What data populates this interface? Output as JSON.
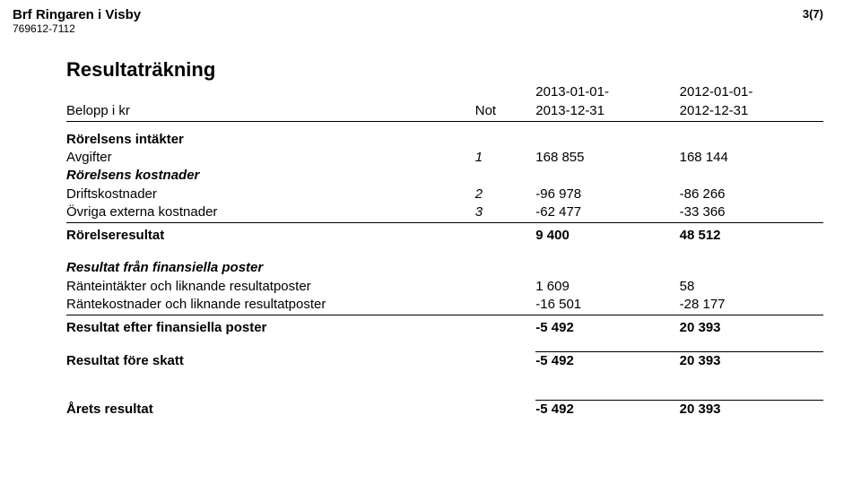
{
  "header": {
    "company": "Brf Ringaren i Visby",
    "org_no": "769612-7112",
    "page_no": "3(7)"
  },
  "report": {
    "title": "Resultaträkning",
    "columns": {
      "label": "Belopp i kr",
      "note": "Not",
      "cy_line1": "2013-01-01-",
      "cy_line2": "2013-12-31",
      "py_line1": "2012-01-01-",
      "py_line2": "2012-12-31"
    },
    "sections": {
      "income": {
        "heading": "Rörelsens intäkter",
        "fees": {
          "label": "Avgifter",
          "note": "1",
          "cy": "168 855",
          "py": "168 144"
        }
      },
      "costs": {
        "heading": "Rörelsens kostnader",
        "operating": {
          "label": "Driftskostnader",
          "note": "2",
          "cy": "-96 978",
          "py": "-86 266"
        },
        "other_ext": {
          "label": "Övriga externa kostnader",
          "note": "3",
          "cy": "-62 477",
          "py": "-33 366"
        }
      },
      "op_result": {
        "label": "Rörelseresultat",
        "cy": "9 400",
        "py": "48 512"
      },
      "financial": {
        "heading": "Resultat från finansiella poster",
        "interest_income": {
          "label": "Ränteintäkter och liknande resultatposter",
          "cy": "1 609",
          "py": "58"
        },
        "interest_cost": {
          "label": "Räntekostnader och liknande resultatposter",
          "cy": "-16 501",
          "py": "-28 177"
        }
      },
      "after_fin": {
        "label": "Resultat efter finansiella poster",
        "cy": "-5 492",
        "py": "20 393"
      },
      "before_tax": {
        "label": "Resultat före skatt",
        "cy": "-5 492",
        "py": "20 393"
      },
      "net": {
        "label": "Årets resultat",
        "cy": "-5 492",
        "py": "20 393"
      }
    }
  }
}
